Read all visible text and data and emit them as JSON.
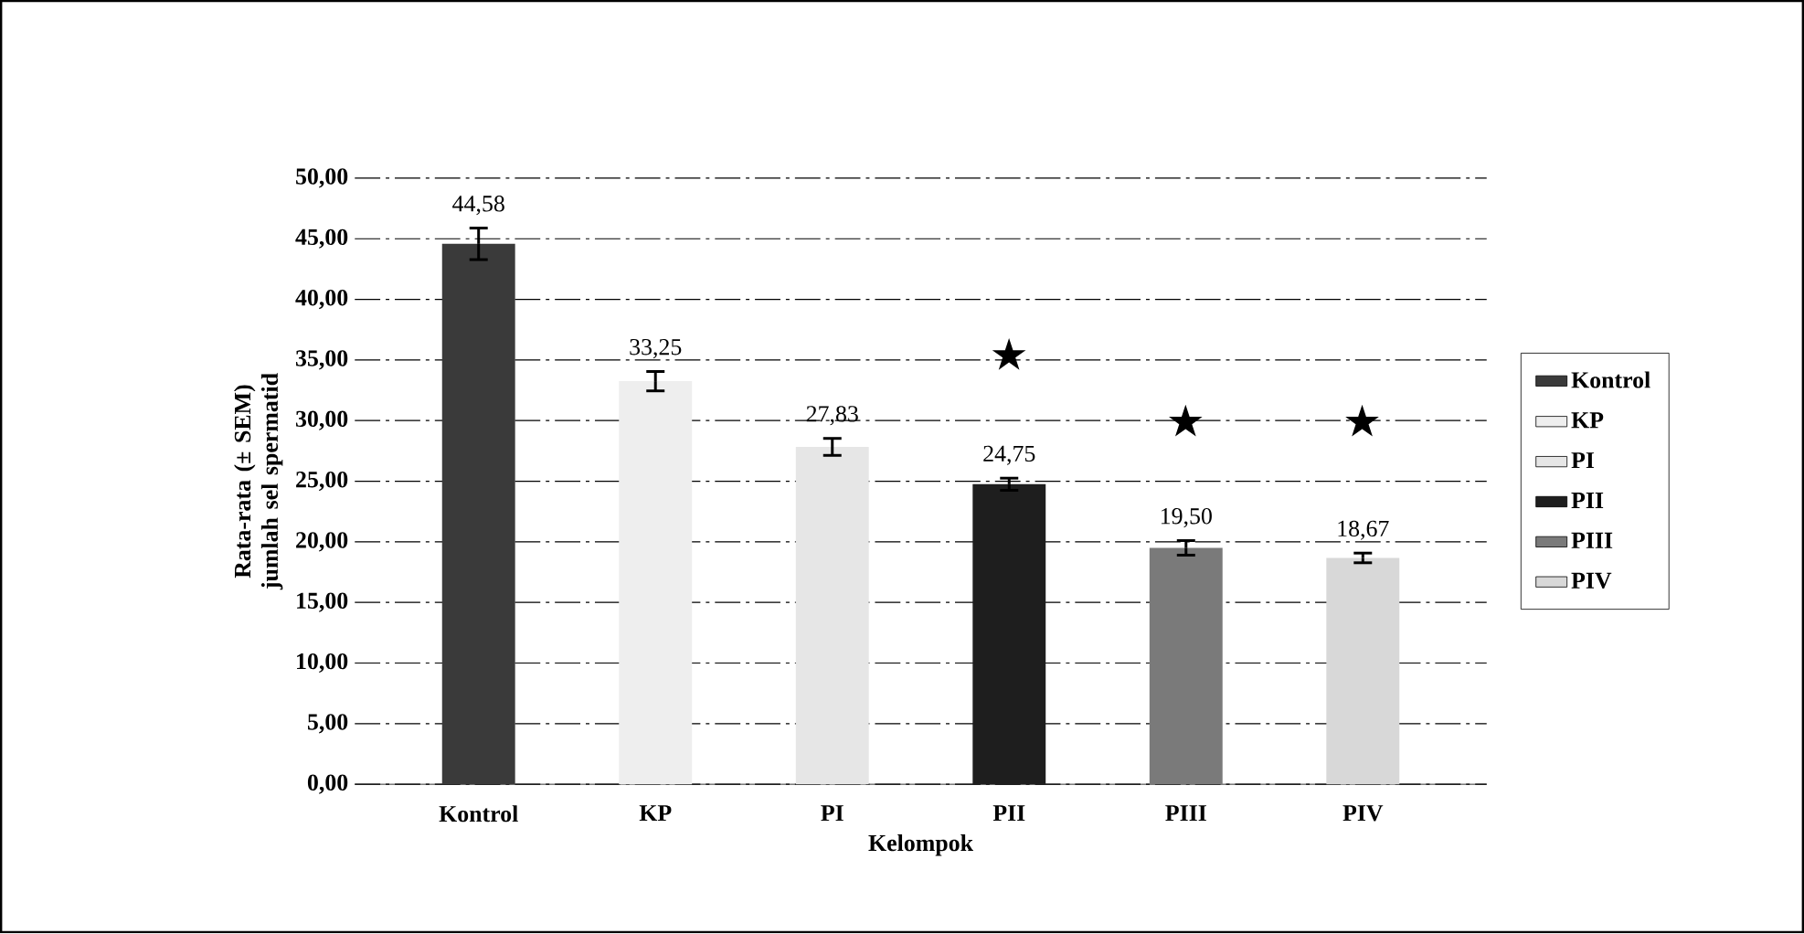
{
  "chart_data": {
    "type": "bar",
    "xlabel": "Kelompok",
    "ylabel": "Rata-rata (± SEM) jumlah sel spermatid",
    "categories": [
      "Kontrol",
      "KP",
      "PI",
      "PII",
      "PIII",
      "PIV"
    ],
    "series": [
      {
        "name": "Kontrol",
        "color": "#3a3a3a",
        "values": [
          44.58,
          null,
          null,
          null,
          null,
          null
        ],
        "errors": [
          1.3,
          null,
          null,
          null,
          null,
          null
        ],
        "value_labels": [
          "44,58",
          null,
          null,
          null,
          null,
          null
        ]
      },
      {
        "name": "KP",
        "color": "#eeeeee",
        "values": [
          null,
          33.25,
          null,
          null,
          null,
          null
        ],
        "errors": [
          null,
          0.8,
          null,
          null,
          null,
          null
        ],
        "value_labels": [
          null,
          "33,25",
          null,
          null,
          null,
          null
        ]
      },
      {
        "name": "PI",
        "color": "#e6e6e6",
        "values": [
          null,
          null,
          27.83,
          null,
          null,
          null
        ],
        "errors": [
          null,
          null,
          0.7,
          null,
          null,
          null
        ],
        "value_labels": [
          null,
          null,
          "27,83",
          null,
          null,
          null
        ]
      },
      {
        "name": "PII",
        "color": "#1e1e1e",
        "values": [
          null,
          null,
          null,
          24.75,
          null,
          null
        ],
        "errors": [
          null,
          null,
          null,
          0.5,
          null,
          null
        ],
        "value_labels": [
          null,
          null,
          null,
          "24,75",
          null,
          null
        ]
      },
      {
        "name": "PIII",
        "color": "#7a7a7a",
        "values": [
          null,
          null,
          null,
          null,
          19.5,
          null
        ],
        "errors": [
          null,
          null,
          null,
          null,
          0.6,
          null
        ],
        "value_labels": [
          null,
          null,
          null,
          null,
          "19,50",
          null
        ]
      },
      {
        "name": "PIV",
        "color": "#d8d8d8",
        "values": [
          null,
          null,
          null,
          null,
          null,
          18.67
        ],
        "errors": [
          null,
          null,
          null,
          null,
          null,
          0.4
        ],
        "value_labels": [
          null,
          null,
          null,
          null,
          null,
          "18,67"
        ]
      }
    ],
    "ylim": [
      0,
      50
    ],
    "yticks": [
      {
        "value": 0,
        "label": "0,00"
      },
      {
        "value": 5,
        "label": "5,00"
      },
      {
        "value": 10,
        "label": "10,00"
      },
      {
        "value": 15,
        "label": "15,00"
      },
      {
        "value": 20,
        "label": "20,00"
      },
      {
        "value": 25,
        "label": "25,00"
      },
      {
        "value": 30,
        "label": "30,00"
      },
      {
        "value": 35,
        "label": "35,00"
      },
      {
        "value": 40,
        "label": "40,00"
      },
      {
        "value": 45,
        "label": "45,00"
      },
      {
        "value": 50,
        "label": "50,00"
      }
    ],
    "annotations": [
      "★",
      "★",
      "★"
    ],
    "grid": "y",
    "legend": "right"
  }
}
